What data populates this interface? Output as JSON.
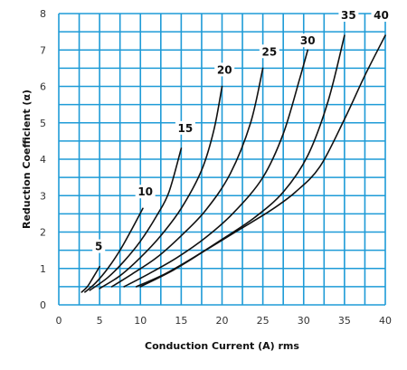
{
  "chart_data": {
    "type": "line",
    "title": "",
    "xlabel": "Conduction Current (A) rms",
    "ylabel": "Reduction Coefficient (α)",
    "xlim": [
      0,
      40
    ],
    "ylim": [
      0,
      8
    ],
    "x_ticks": [
      0,
      5,
      10,
      15,
      20,
      25,
      30,
      35,
      40
    ],
    "x_tick_labels": [
      "0",
      "5",
      "10",
      "15",
      "20",
      "25",
      "30",
      "35",
      "40"
    ],
    "y_ticks": [
      0,
      1,
      2,
      3,
      4,
      5,
      6,
      7,
      8
    ],
    "y_tick_labels": [
      "0",
      "1",
      "2",
      "3",
      "4",
      "5",
      "6",
      "7",
      "8"
    ],
    "grid": true,
    "x_grid_step": 2.5,
    "y_grid_step": 0.5,
    "colors": {
      "grid": "#1e9bd7",
      "curve": "#111111",
      "background": "#ffffff"
    },
    "series": [
      {
        "name": "5",
        "label_at": [
          4.9,
          1.6
        ],
        "points": [
          [
            2.8,
            0.35
          ],
          [
            3.5,
            0.5
          ],
          [
            4.2,
            0.75
          ],
          [
            5.0,
            1.05
          ]
        ]
      },
      {
        "name": "10",
        "label_at": [
          10.6,
          3.1
        ],
        "points": [
          [
            3.2,
            0.35
          ],
          [
            4.5,
            0.6
          ],
          [
            6.0,
            1.0
          ],
          [
            7.5,
            1.5
          ],
          [
            9.0,
            2.1
          ],
          [
            10.3,
            2.65
          ]
        ]
      },
      {
        "name": "15",
        "label_at": [
          15.5,
          4.85
        ],
        "points": [
          [
            3.8,
            0.4
          ],
          [
            6.0,
            0.75
          ],
          [
            8.0,
            1.2
          ],
          [
            10.0,
            1.75
          ],
          [
            12.0,
            2.45
          ],
          [
            13.5,
            3.1
          ],
          [
            15.0,
            4.3
          ]
        ]
      },
      {
        "name": "20",
        "label_at": [
          20.3,
          6.45
        ],
        "points": [
          [
            5.0,
            0.45
          ],
          [
            7.5,
            0.8
          ],
          [
            10.0,
            1.3
          ],
          [
            12.5,
            1.9
          ],
          [
            15.0,
            2.65
          ],
          [
            17.5,
            3.7
          ],
          [
            19.0,
            4.8
          ],
          [
            20.0,
            6.0
          ]
        ]
      },
      {
        "name": "25",
        "label_at": [
          25.8,
          6.95
        ],
        "points": [
          [
            6.5,
            0.5
          ],
          [
            9.0,
            0.85
          ],
          [
            12.0,
            1.3
          ],
          [
            15.0,
            1.9
          ],
          [
            18.0,
            2.6
          ],
          [
            21.0,
            3.6
          ],
          [
            23.5,
            5.0
          ],
          [
            25.0,
            6.5
          ]
        ]
      },
      {
        "name": "30",
        "label_at": [
          30.5,
          7.25
        ],
        "points": [
          [
            8.0,
            0.5
          ],
          [
            11.0,
            0.85
          ],
          [
            14.5,
            1.3
          ],
          [
            18.0,
            1.85
          ],
          [
            21.5,
            2.55
          ],
          [
            25.0,
            3.5
          ],
          [
            27.5,
            4.7
          ],
          [
            29.5,
            6.2
          ],
          [
            30.5,
            7.0
          ]
        ]
      },
      {
        "name": "35",
        "label_at": [
          35.5,
          7.95
        ],
        "points": [
          [
            9.5,
            0.5
          ],
          [
            13.0,
            0.85
          ],
          [
            16.5,
            1.3
          ],
          [
            20.0,
            1.8
          ],
          [
            24.0,
            2.4
          ],
          [
            27.5,
            3.1
          ],
          [
            30.5,
            4.1
          ],
          [
            33.0,
            5.6
          ],
          [
            35.0,
            7.4
          ]
        ]
      },
      {
        "name": "40",
        "label_at": [
          39.5,
          7.95
        ],
        "points": [
          [
            10.0,
            0.5
          ],
          [
            14.0,
            0.95
          ],
          [
            18.0,
            1.5
          ],
          [
            22.0,
            2.05
          ],
          [
            26.0,
            2.6
          ],
          [
            29.0,
            3.1
          ],
          [
            32.0,
            3.8
          ],
          [
            35.0,
            5.1
          ],
          [
            37.5,
            6.3
          ],
          [
            40.0,
            7.4
          ]
        ]
      }
    ]
  }
}
